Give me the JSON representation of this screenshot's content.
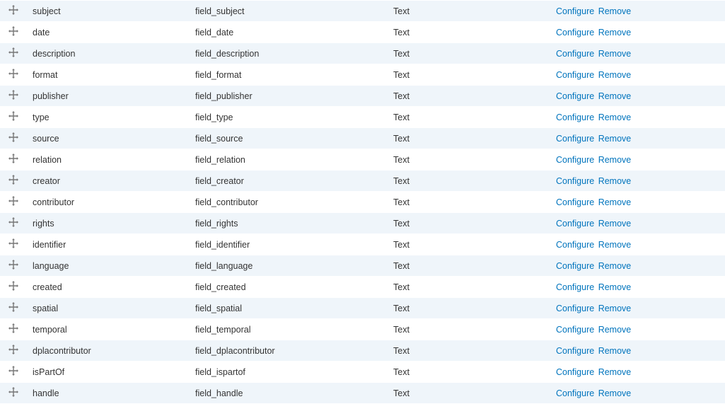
{
  "colors": {
    "row_odd_bg": "#eff5fa",
    "row_even_bg": "#ffffff",
    "link": "#0074bd",
    "text": "#333333",
    "drag_icon": "#777777"
  },
  "actions": {
    "configure_label": "Configure",
    "remove_label": "Remove"
  },
  "type_label": "Text",
  "rows": [
    {
      "label": "subject",
      "machine_name": "field_subject",
      "type": "Text"
    },
    {
      "label": "date",
      "machine_name": "field_date",
      "type": "Text"
    },
    {
      "label": "description",
      "machine_name": "field_description",
      "type": "Text"
    },
    {
      "label": "format",
      "machine_name": "field_format",
      "type": "Text"
    },
    {
      "label": "publisher",
      "machine_name": "field_publisher",
      "type": "Text"
    },
    {
      "label": "type",
      "machine_name": "field_type",
      "type": "Text"
    },
    {
      "label": "source",
      "machine_name": "field_source",
      "type": "Text"
    },
    {
      "label": "relation",
      "machine_name": "field_relation",
      "type": "Text"
    },
    {
      "label": "creator",
      "machine_name": "field_creator",
      "type": "Text"
    },
    {
      "label": "contributor",
      "machine_name": "field_contributor",
      "type": "Text"
    },
    {
      "label": "rights",
      "machine_name": "field_rights",
      "type": "Text"
    },
    {
      "label": "identifier",
      "machine_name": "field_identifier",
      "type": "Text"
    },
    {
      "label": "language",
      "machine_name": "field_language",
      "type": "Text"
    },
    {
      "label": "created",
      "machine_name": "field_created",
      "type": "Text"
    },
    {
      "label": "spatial",
      "machine_name": "field_spatial",
      "type": "Text"
    },
    {
      "label": "temporal",
      "machine_name": "field_temporal",
      "type": "Text"
    },
    {
      "label": "dplacontributor",
      "machine_name": "field_dplacontributor",
      "type": "Text"
    },
    {
      "label": "isPartOf",
      "machine_name": "field_ispartof",
      "type": "Text"
    },
    {
      "label": "handle",
      "machine_name": "field_handle",
      "type": "Text"
    }
  ]
}
